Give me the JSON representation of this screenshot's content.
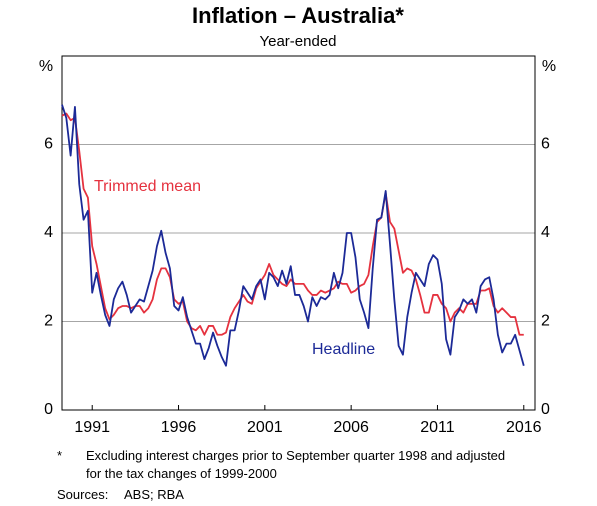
{
  "chart_data": {
    "type": "line",
    "title": "Inflation – Australia*",
    "subtitle": "Year-ended",
    "y_unit": "%",
    "y2_unit": "%",
    "x": [
      1989.25,
      1989.5,
      1989.75,
      1990,
      1990.25,
      1990.5,
      1990.75,
      1991,
      1991.25,
      1991.5,
      1991.75,
      1992,
      1992.25,
      1992.5,
      1992.75,
      1993,
      1993.25,
      1993.5,
      1993.75,
      1994,
      1994.25,
      1994.5,
      1994.75,
      1995,
      1995.25,
      1995.5,
      1995.75,
      1996,
      1996.25,
      1996.5,
      1996.75,
      1997,
      1997.25,
      1997.5,
      1997.75,
      1998,
      1998.25,
      1998.5,
      1998.75,
      1999,
      1999.25,
      1999.5,
      1999.75,
      2000,
      2000.25,
      2000.5,
      2000.75,
      2001,
      2001.25,
      2001.5,
      2001.75,
      2002,
      2002.25,
      2002.5,
      2002.75,
      2003,
      2003.25,
      2003.5,
      2003.75,
      2004,
      2004.25,
      2004.5,
      2004.75,
      2005,
      2005.25,
      2005.5,
      2005.75,
      2006,
      2006.25,
      2006.5,
      2006.75,
      2007,
      2007.25,
      2007.5,
      2007.75,
      2008,
      2008.25,
      2008.5,
      2008.75,
      2009,
      2009.25,
      2009.5,
      2009.75,
      2010,
      2010.25,
      2010.5,
      2010.75,
      2011,
      2011.25,
      2011.5,
      2011.75,
      2012,
      2012.25,
      2012.5,
      2012.75,
      2013,
      2013.25,
      2013.5,
      2013.75,
      2014,
      2014.25,
      2014.5,
      2014.75,
      2015,
      2015.25,
      2015.5,
      2015.75,
      2016
    ],
    "series": [
      {
        "name": "Trimmed mean",
        "color": "#e5323f",
        "values": [
          6.65,
          6.7,
          6.55,
          6.6,
          5.85,
          5.0,
          4.8,
          3.7,
          3.3,
          2.8,
          2.3,
          2.05,
          2.15,
          2.3,
          2.35,
          2.35,
          2.3,
          2.35,
          2.35,
          2.2,
          2.3,
          2.5,
          2.95,
          3.2,
          3.2,
          3.0,
          2.5,
          2.4,
          2.45,
          2.0,
          1.85,
          1.8,
          1.9,
          1.7,
          1.9,
          1.9,
          1.7,
          1.7,
          1.75,
          2.1,
          2.3,
          2.45,
          2.6,
          2.45,
          2.4,
          2.75,
          2.9,
          3.05,
          3.3,
          3.05,
          2.95,
          2.85,
          2.8,
          2.95,
          2.85,
          2.85,
          2.85,
          2.7,
          2.6,
          2.6,
          2.7,
          2.65,
          2.7,
          2.75,
          2.9,
          2.85,
          2.85,
          2.65,
          2.7,
          2.8,
          2.85,
          3.05,
          3.7,
          4.25,
          4.35,
          4.9,
          4.25,
          4.1,
          3.6,
          3.1,
          3.2,
          3.15,
          2.95,
          2.6,
          2.2,
          2.2,
          2.6,
          2.6,
          2.4,
          2.3,
          2.0,
          2.2,
          2.3,
          2.2,
          2.4,
          2.4,
          2.4,
          2.7,
          2.7,
          2.75,
          2.35,
          2.2,
          2.3,
          2.2,
          2.1,
          2.1,
          1.7,
          1.7
        ]
      },
      {
        "name": "Headline",
        "color": "#1c2a97",
        "values": [
          6.9,
          6.6,
          5.75,
          6.85,
          5.1,
          4.3,
          4.5,
          2.65,
          3.1,
          2.6,
          2.15,
          1.9,
          2.5,
          2.75,
          2.9,
          2.6,
          2.2,
          2.35,
          2.5,
          2.45,
          2.8,
          3.15,
          3.7,
          4.05,
          3.55,
          3.2,
          2.35,
          2.25,
          2.55,
          2.1,
          1.8,
          1.5,
          1.5,
          1.15,
          1.4,
          1.75,
          1.45,
          1.2,
          1.0,
          1.8,
          1.8,
          2.25,
          2.8,
          2.65,
          2.5,
          2.8,
          2.95,
          2.5,
          3.1,
          3.0,
          2.8,
          3.15,
          2.85,
          3.25,
          2.6,
          2.6,
          2.35,
          2.0,
          2.55,
          2.35,
          2.55,
          2.5,
          2.6,
          3.1,
          2.75,
          3.1,
          4.0,
          4.0,
          3.45,
          2.5,
          2.2,
          1.85,
          3.2,
          4.3,
          4.35,
          4.95,
          3.75,
          2.5,
          1.45,
          1.25,
          2.1,
          2.65,
          3.1,
          2.95,
          2.8,
          3.3,
          3.5,
          3.4,
          2.85,
          1.6,
          1.25,
          2.1,
          2.25,
          2.5,
          2.4,
          2.5,
          2.2,
          2.8,
          2.95,
          3.0,
          2.5,
          1.7,
          1.3,
          1.5,
          1.5,
          1.7,
          1.35,
          1.0
        ]
      }
    ],
    "xlim": [
      1989.25,
      2016.65
    ],
    "xticks": [
      1991,
      1996,
      2001,
      2006,
      2011,
      2016
    ],
    "ylim": [
      0,
      8
    ],
    "yticks": [
      0,
      2,
      4,
      6
    ],
    "y2lim": [
      0,
      8
    ],
    "y2ticks": [
      0,
      2,
      4,
      6
    ],
    "grid": true,
    "notes": [
      {
        "marker": "*",
        "text": "Excluding interest charges prior to September quarter 1998 and adjusted for the tax changes of 1999-2000"
      }
    ],
    "sources_label": "Sources:",
    "sources": "ABS; RBA"
  }
}
